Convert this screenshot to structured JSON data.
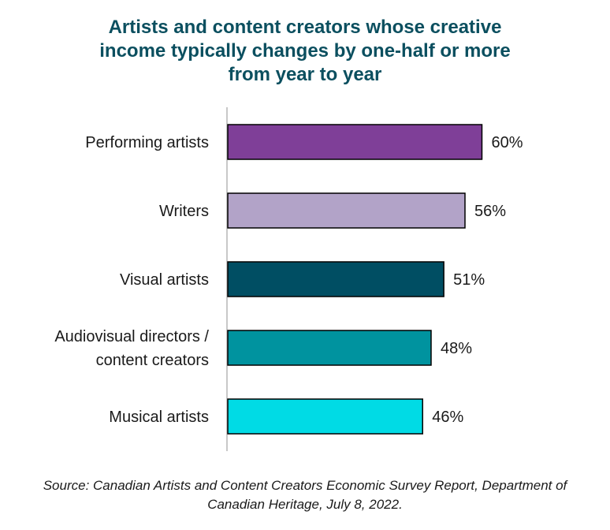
{
  "chart_data": {
    "type": "bar",
    "orientation": "horizontal",
    "title_lines": [
      "Artists and content creators whose creative",
      "income typically changes by one-half or more",
      "from year to year"
    ],
    "categories": [
      [
        "Performing artists"
      ],
      [
        "Writers"
      ],
      [
        "Visual artists"
      ],
      [
        "Audiovisual directors /",
        "content creators"
      ],
      [
        "Musical artists"
      ]
    ],
    "values": [
      60,
      56,
      51,
      48,
      46
    ],
    "value_labels": [
      "60%",
      "56%",
      "51%",
      "48%",
      "46%"
    ],
    "colors": [
      "#7f3f98",
      "#b2a3c8",
      "#004e63",
      "#00939f",
      "#00dbe5"
    ],
    "xlim": [
      0,
      100
    ],
    "grid": false,
    "legend": "none"
  },
  "source_lines": [
    "Source: Canadian Artists and Content Creators Economic Survey Report, Department of",
    "Canadian Heritage, July 8, 2022."
  ]
}
